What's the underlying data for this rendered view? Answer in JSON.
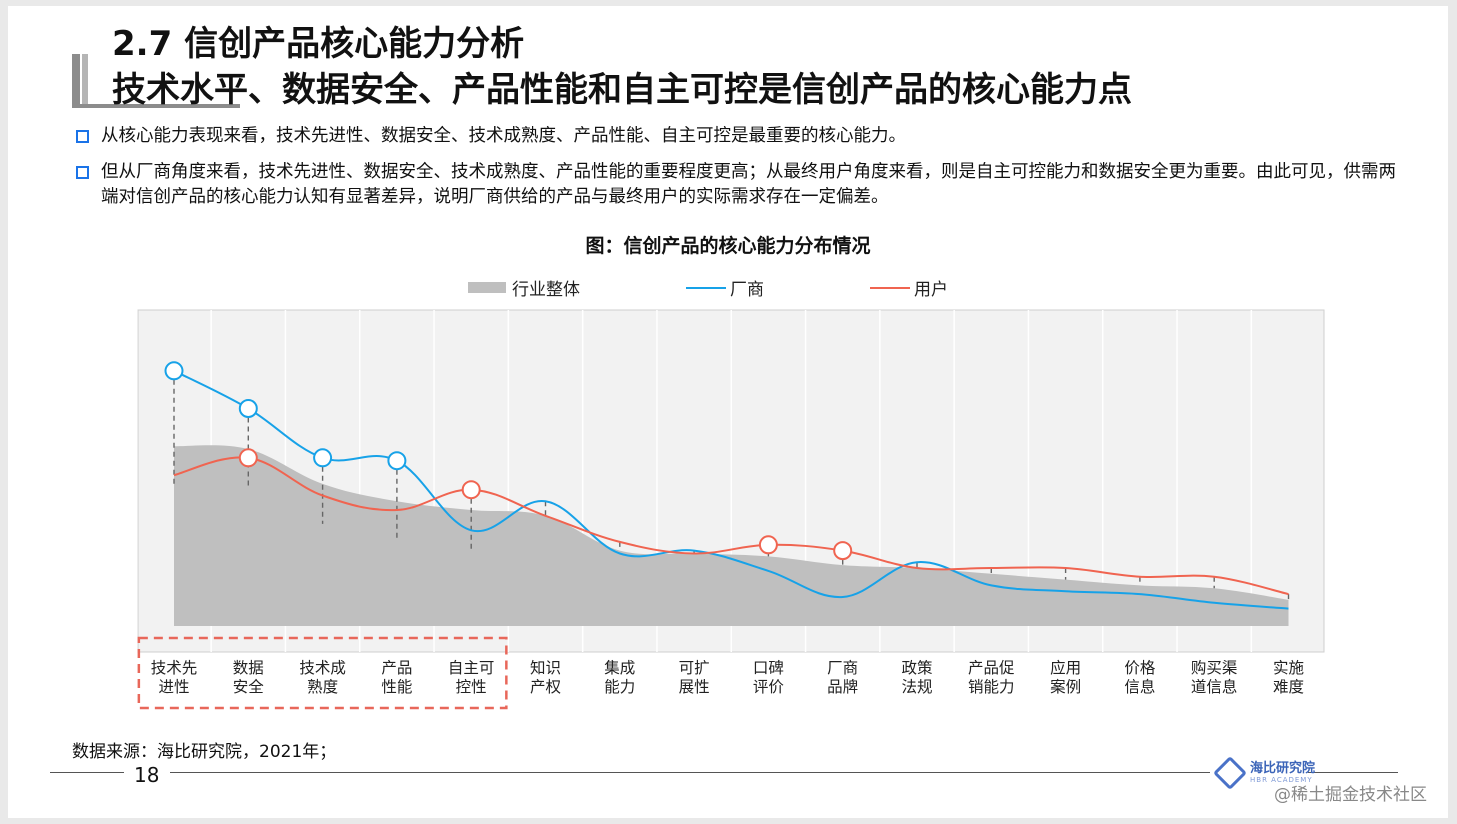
{
  "title": {
    "line1": "2.7 信创产品核心能力分析",
    "line2": "技术水平、数据安全、产品性能和自主可控是信创产品的核心能力点"
  },
  "bullets": [
    "从核心能力表现来看，技术先进性、数据安全、技术成熟度、产品性能、自主可控是最重要的核心能力。",
    "但从厂商角度来看，技术先进性、数据安全、技术成熟度、产品性能的重要程度更高；从最终用户角度来看，则是自主可控能力和数据安全更为重要。由此可见，供需两端对信创产品的核心能力认知有显著差异，说明厂商供给的产品与最终用户的实际需求存在一定偏差。"
  ],
  "chart_data": {
    "type": "line",
    "title": "图：信创产品的核心能力分布情况",
    "categories": [
      "技术先\n进性",
      "数据\n安全",
      "技术成\n熟度",
      "产品\n性能",
      "自主可\n控性",
      "知识\n产权",
      "集成\n能力",
      "可扩\n展性",
      "口碑\n评价",
      "厂商\n品牌",
      "政策\n法规",
      "产品促\n销能力",
      "应用\n案例",
      "价格\n信息",
      "购买渠\n道信息",
      "实施\n难度"
    ],
    "series": [
      {
        "name": "行业整体",
        "style": "area",
        "color": "#bfbfbf",
        "values": [
          0.62,
          0.61,
          0.49,
          0.43,
          0.4,
          0.38,
          0.26,
          0.25,
          0.24,
          0.21,
          0.2,
          0.18,
          0.16,
          0.14,
          0.13,
          0.09
        ]
      },
      {
        "name": "厂商",
        "style": "line",
        "color": "#17a2e8",
        "values": [
          0.88,
          0.75,
          0.58,
          0.57,
          0.33,
          0.43,
          0.25,
          0.26,
          0.19,
          0.1,
          0.22,
          0.14,
          0.12,
          0.11,
          0.08,
          0.06
        ]
      },
      {
        "name": "用户",
        "style": "line",
        "color": "#f06450",
        "values": [
          0.52,
          0.58,
          0.45,
          0.4,
          0.47,
          0.38,
          0.29,
          0.25,
          0.28,
          0.26,
          0.2,
          0.2,
          0.2,
          0.17,
          0.17,
          0.11
        ]
      }
    ],
    "highlighted_markers": {
      "厂商": [
        0,
        1,
        2,
        3
      ],
      "用户": [
        1,
        4,
        8,
        9
      ]
    },
    "highlight_box_categories": [
      0,
      4
    ],
    "ylim": [
      0,
      1
    ],
    "grid": "vertical",
    "legend": "top"
  },
  "footer": {
    "source": "数据来源：海比研究院，2021年；",
    "page": "18",
    "logo_text": "海比研究院",
    "logo_sub": "HBR ACADEMY",
    "watermark": "@稀土掘金技术社区"
  },
  "colors": {
    "accent": "#1a73e8",
    "highlight_box": "#e8675a"
  }
}
